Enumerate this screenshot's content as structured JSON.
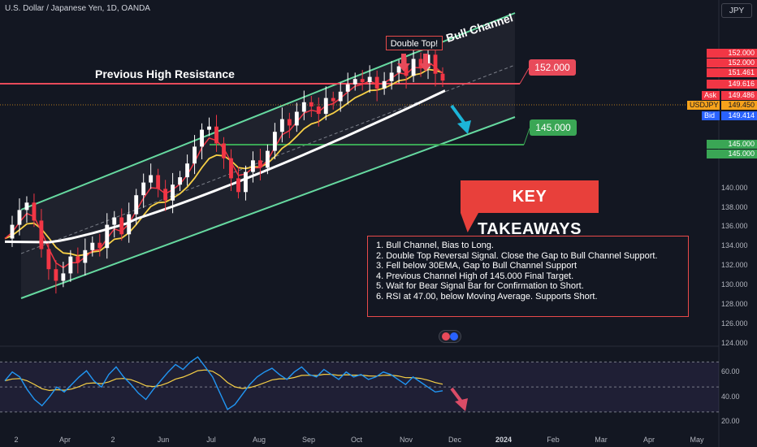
{
  "header": {
    "symbol_title": "U.S. Dollar / Japanese Yen, 1D, OANDA",
    "currency_button": "JPY"
  },
  "annotations": {
    "previous_high_resistance": "Previous High Resistance",
    "bull_channel": "Bull Channel",
    "double_top": "Double Top!",
    "level_152": "152.000",
    "level_145": "145.000",
    "key_takeaways_title": "KEY TAKEAWAYS",
    "takeaways": [
      "1. Bull Channel, Bias to Long.",
      "2. Double Top Reversal Signal. Close the Gap to Bull Channel Support.",
      "3. Fell below 30EMA, Gap to Bull Channel Support",
      "4. Previous Channel High of 145.000 Final Target.",
      "5. Wait for Bear Signal Bar for Confirmation to Short.",
      "6. RSI at 47.00, below Moving Average. Supports Short."
    ]
  },
  "price_axis": {
    "ticks": [
      "140.000",
      "138.000",
      "136.000",
      "134.000",
      "132.000",
      "130.000",
      "128.000",
      "126.000",
      "124.000"
    ],
    "price_tags": [
      {
        "label": "",
        "value": "152.000",
        "color": "#f23645"
      },
      {
        "label": "",
        "value": "152.000",
        "color": "#f23645"
      },
      {
        "label": "",
        "value": "151.461",
        "color": "#f23645"
      },
      {
        "label": "",
        "value": "149.616",
        "color": "#f23645"
      },
      {
        "label": "Ask",
        "value": "149.486",
        "color": "#f23645"
      },
      {
        "label": "USDJPY",
        "value": "149.450",
        "color": "#f7a21b"
      },
      {
        "label": "Bid",
        "value": "149.414",
        "color": "#2962ff"
      },
      {
        "label": "",
        "value": "145.000",
        "color": "#3aa655"
      },
      {
        "label": "",
        "value": "145.000",
        "color": "#3aa655"
      }
    ]
  },
  "rsi_axis": {
    "ticks": [
      "60.00",
      "40.00",
      "20.00"
    ]
  },
  "time_axis": {
    "ticks": [
      "2",
      "Apr",
      "2",
      "Jun",
      "Jul",
      "Aug",
      "Sep",
      "Oct",
      "Nov",
      "Dec",
      "2024",
      "Feb",
      "Mar",
      "Apr",
      "May"
    ]
  },
  "colors": {
    "background": "#131722",
    "channel_lines": "#66d9a0",
    "resistance": "#e84a5a",
    "support": "#3aa655",
    "ema_fast": "#f23645",
    "ema_slow": "#f7d046",
    "sma_long": "#ffffff",
    "rsi_line": "#2196f3",
    "rsi_ma": "#f7d046",
    "bull_candle": "#ffffff",
    "bear_candle": "#f23645",
    "arrow_down": "#e84a5a",
    "arrow_cyan": "#1cb5d8"
  },
  "chart_data": {
    "type": "candlestick",
    "title": "U.S. Dollar / Japanese Yen, 1D, OANDA",
    "ylim": [
      124,
      154
    ],
    "rsi_ylim": [
      15,
      80
    ],
    "key_levels": [
      152.0,
      145.0
    ],
    "rsi_levels": [
      70,
      50,
      30
    ],
    "current_price": 149.45,
    "rsi_value": 47.0,
    "price_path": [
      134.5,
      135.8,
      137.2,
      137.9,
      136.2,
      133.5,
      131.6,
      130.5,
      131.2,
      132.8,
      132.2,
      133.4,
      134.1,
      133.6,
      135.8,
      136.5,
      134.9,
      136.8,
      138.6,
      139.8,
      140.5,
      139.2,
      138.1,
      139.6,
      140.3,
      141.6,
      143.2,
      144.8,
      145.1,
      143.5,
      142.1,
      140.2,
      138.9,
      140.8,
      141.9,
      141.2,
      142.8,
      144.6,
      145.8,
      145.2,
      146.5,
      147.4,
      147.0,
      146.3,
      147.8,
      147.5,
      148.4,
      149.1,
      149.6,
      149.3,
      149.8,
      148.7,
      149.4,
      150.2,
      150.8,
      149.9,
      151.5,
      150.6,
      151.9,
      150.1,
      149.45
    ],
    "rsi_path": [
      55,
      62,
      58,
      48,
      40,
      35,
      42,
      50,
      46,
      52,
      58,
      63,
      55,
      50,
      60,
      66,
      58,
      52,
      45,
      40,
      48,
      55,
      62,
      68,
      64,
      70,
      74,
      66,
      58,
      45,
      32,
      36,
      44,
      52,
      58,
      62,
      65,
      60,
      56,
      62,
      66,
      60,
      58,
      64,
      60,
      56,
      62,
      58,
      60,
      56,
      58,
      62,
      60,
      56,
      52,
      58,
      54,
      50,
      46,
      47
    ]
  }
}
